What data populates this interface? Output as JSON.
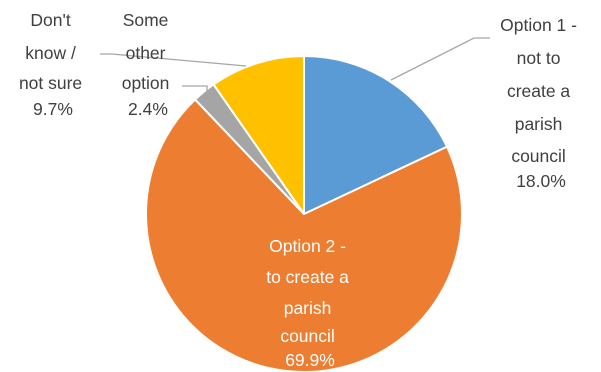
{
  "chart_data": {
    "type": "pie",
    "slices": [
      {
        "label": "Option 1 - not to create a parish council",
        "pct_text": "18.0%",
        "value": 18.0,
        "color": "#5B9BD5"
      },
      {
        "label": "Option 2 - to create a parish council",
        "pct_text": "69.9%",
        "value": 69.9,
        "color": "#ED7D31"
      },
      {
        "label": "Some other option",
        "pct_text": "2.4%",
        "value": 2.4,
        "color": "#A5A5A5"
      },
      {
        "label": "Don't know / not sure",
        "pct_text": "9.7%",
        "value": 9.7,
        "color": "#FFC000"
      }
    ],
    "start_angle": "12 o'clock",
    "direction": "clockwise",
    "label_lines": {
      "s0": [
        "Option 1 -",
        "not to",
        "create a",
        "parish",
        "council"
      ],
      "s1": [
        "Option 2 -",
        "to create a",
        "parish",
        "council"
      ],
      "s2": [
        "Some",
        "other",
        "option"
      ],
      "s3": [
        "Don't",
        "know /",
        "not sure"
      ]
    }
  }
}
